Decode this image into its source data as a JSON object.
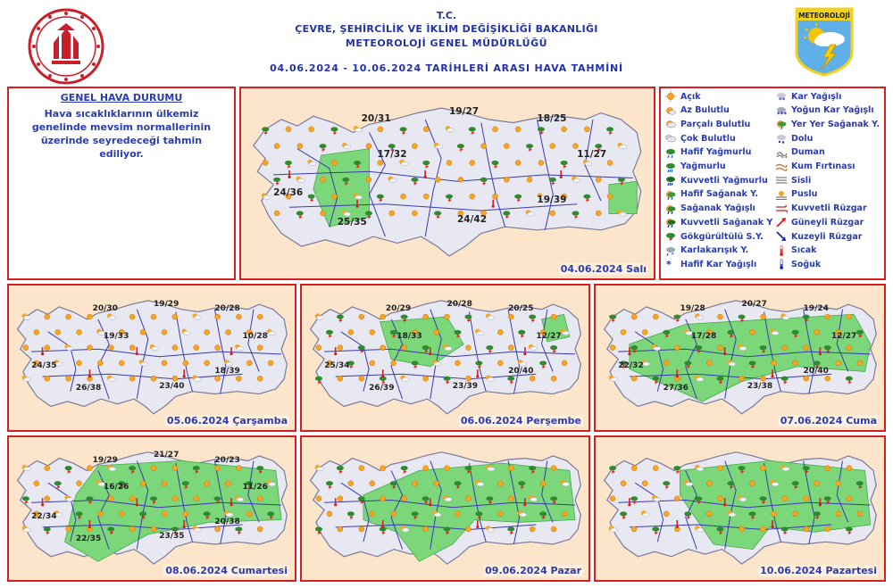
{
  "header": {
    "line1": "T.C.",
    "line2": "ÇEVRE, ŞEHİRCİLİK VE İKLİM DEĞİŞİKLİĞİ BAKANLIĞI",
    "line3": "METEOROLOJİ GENEL MÜDÜRLÜĞÜ",
    "line4": "04.06.2024 - 10.06.2024 TARİHLERİ ARASI HAVA TAHMİNİ",
    "logo_text": "METEOROLOJİ"
  },
  "general": {
    "title": "GENEL HAVA DURUMU",
    "text": "Hava sıcaklıklarının ülkemiz genelinde mevsim normallerinin üzerinde seyredeceği tahmin ediliyor."
  },
  "legend": {
    "col1": [
      "Açık",
      "Az Bulutlu",
      "Parçalı Bulutlu",
      "Çok Bulutlu",
      "Hafif Yağmurlu",
      "Yağmurlu",
      "Kuvvetli Yağmurlu",
      "Hafif Sağanak Y.",
      "Sağanak Yağışlı",
      "Kuvvetli Sağanak Y",
      "Gökgürültülü S.Y.",
      "Karlakarışık Y.",
      "Hafif Kar Yağışlı"
    ],
    "col2": [
      "Kar Yağışlı",
      "Yoğun Kar Yağışlı",
      "Yer Yer Sağanak Y.",
      "Dolu",
      "Duman",
      "Kum Fırtınası",
      "Sisli",
      "Puslu",
      "Kuvvetli Rüzgar",
      "Güneyli Rüzgar",
      "Kuzeyli Rüzgar",
      "Sıcak",
      "Soğuk"
    ]
  },
  "panels": [
    {
      "date": "04.06.2024 Salı",
      "temps": [
        "20/31",
        "19/27",
        "18/25",
        "17/32",
        "11/27",
        "24/36",
        "25/35",
        "24/42",
        "19/39"
      ]
    },
    {
      "date": "05.06.2024 Çarşamba",
      "temps": [
        "20/30",
        "19/29",
        "20/28",
        "19/33",
        "10/28",
        "24/35",
        "26/38",
        "23/40",
        "18/39"
      ]
    },
    {
      "date": "06.06.2024 Perşembe",
      "temps": [
        "20/29",
        "20/28",
        "20/25",
        "18/33",
        "12/27",
        "25/34",
        "26/39",
        "23/39",
        "20/40"
      ]
    },
    {
      "date": "07.06.2024 Cuma",
      "temps": [
        "19/28",
        "20/27",
        "19/24",
        "17/28",
        "12/27",
        "22/32",
        "27/36",
        "23/38",
        "20/40"
      ]
    },
    {
      "date": "08.06.2024 Cumartesi",
      "temps": [
        "19/29",
        "21/27",
        "20/23",
        "16/26",
        "11/26",
        "22/34",
        "22/35",
        "23/35",
        "20/38"
      ]
    },
    {
      "date": "09.06.2024 Pazar",
      "temps": []
    },
    {
      "date": "10.06.2024 Pazartesi",
      "temps": []
    }
  ],
  "colors": {
    "border": "#d42020",
    "text_blue": "#2a3cb0",
    "sea": "#fde5cc",
    "land": "#e8e8f2",
    "rain_zone": "#7cd77a",
    "sun": "#f5a623"
  }
}
